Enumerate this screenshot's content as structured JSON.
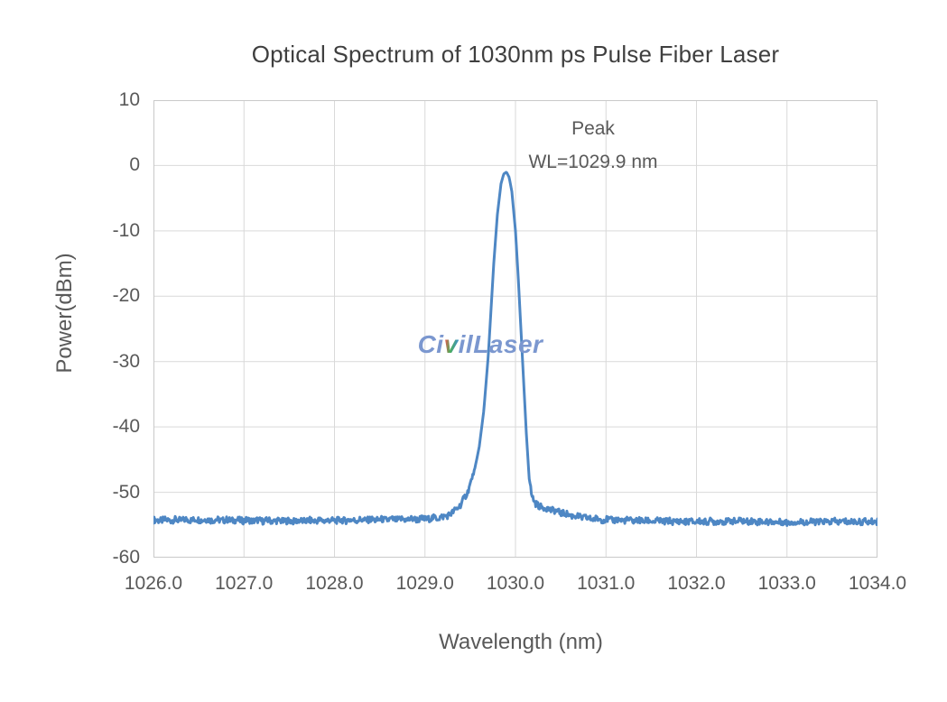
{
  "chart_data": {
    "type": "line",
    "title": "Optical Spectrum of 1030nm ps Pulse Fiber Laser",
    "xlabel": "Wavelength (nm)",
    "ylabel": "Power(dBm)",
    "xlim": [
      1026.0,
      1034.0
    ],
    "ylim": [
      -60,
      10
    ],
    "x_ticks": [
      "1026.0",
      "1027.0",
      "1028.0",
      "1029.0",
      "1030.0",
      "1031.0",
      "1032.0",
      "1033.0",
      "1034.0"
    ],
    "y_ticks": [
      "10",
      "0",
      "-10",
      "-20",
      "-30",
      "-40",
      "-50",
      "-60"
    ],
    "grid": true,
    "legend": "none",
    "annotation": {
      "line1": "Peak",
      "line2": "WL=1029.9 nm"
    },
    "peak": {
      "wavelength_nm": 1029.9,
      "power_dbm": -1.0
    },
    "baseline_dbm": -54.4,
    "noise_amplitude_db": 0.5,
    "colors": {
      "line": "#4e87c4",
      "grid": "#d9d9d9",
      "border": "#c9c9c9",
      "tick_text": "#595959",
      "title_text": "#3f3f3f"
    },
    "series": [
      {
        "name": "spectrum",
        "points": [
          [
            1026.0,
            -54.3
          ],
          [
            1026.5,
            -54.2
          ],
          [
            1027.0,
            -54.3
          ],
          [
            1027.5,
            -54.4
          ],
          [
            1028.0,
            -54.3
          ],
          [
            1028.5,
            -54.2
          ],
          [
            1029.0,
            -54.1
          ],
          [
            1029.2,
            -53.8
          ],
          [
            1029.3,
            -53.2
          ],
          [
            1029.4,
            -51.8
          ],
          [
            1029.47,
            -50.0
          ],
          [
            1029.55,
            -46.5
          ],
          [
            1029.6,
            -43.0
          ],
          [
            1029.65,
            -37.5
          ],
          [
            1029.7,
            -29.0
          ],
          [
            1029.73,
            -22.0
          ],
          [
            1029.76,
            -15.0
          ],
          [
            1029.8,
            -7.5
          ],
          [
            1029.84,
            -2.8
          ],
          [
            1029.87,
            -1.3
          ],
          [
            1029.9,
            -1.0
          ],
          [
            1029.93,
            -1.8
          ],
          [
            1029.96,
            -4.0
          ],
          [
            1030.0,
            -10.0
          ],
          [
            1030.03,
            -17.0
          ],
          [
            1030.06,
            -25.0
          ],
          [
            1030.09,
            -33.0
          ],
          [
            1030.12,
            -41.0
          ],
          [
            1030.15,
            -47.5
          ],
          [
            1030.18,
            -50.5
          ],
          [
            1030.22,
            -51.8
          ],
          [
            1030.3,
            -52.3
          ],
          [
            1030.45,
            -52.9
          ],
          [
            1030.6,
            -53.5
          ],
          [
            1030.8,
            -54.0
          ],
          [
            1031.0,
            -54.2
          ],
          [
            1031.5,
            -54.4
          ],
          [
            1032.0,
            -54.5
          ],
          [
            1032.5,
            -54.4
          ],
          [
            1033.0,
            -54.6
          ],
          [
            1033.5,
            -54.5
          ],
          [
            1034.0,
            -54.5
          ]
        ]
      }
    ]
  },
  "watermark": {
    "part1": "Ci",
    "part2": "v",
    "part3": "ilLaser",
    "full_text": "CivilLaser",
    "color": "#7b97cf"
  }
}
